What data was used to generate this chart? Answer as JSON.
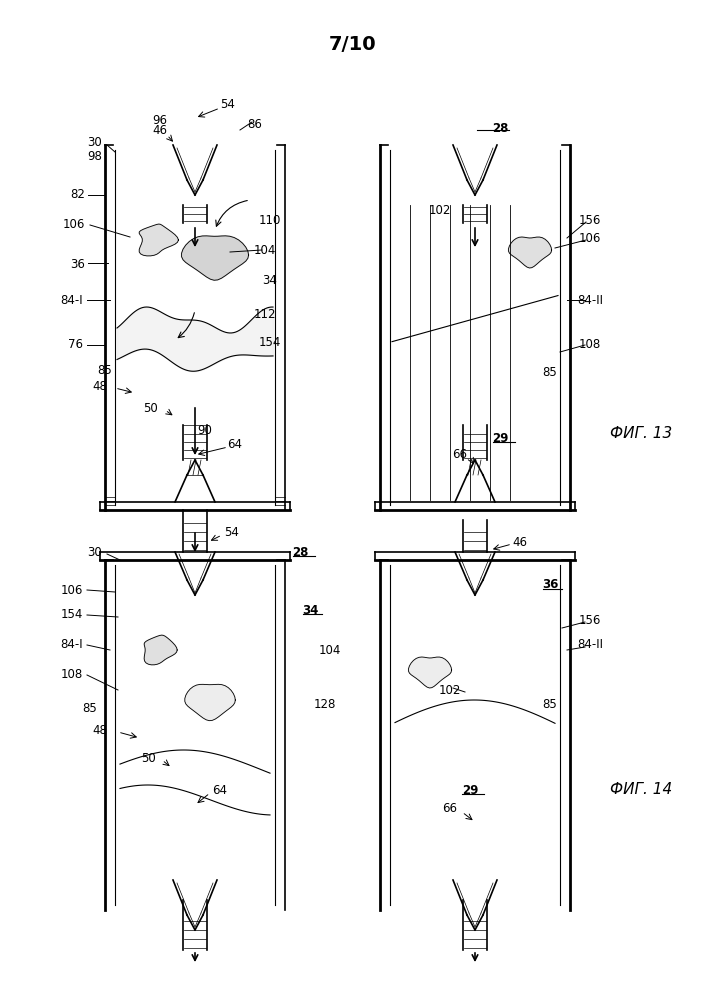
{
  "title": "7/10",
  "fig13_label": "ФИГ. 13",
  "fig14_label": "ФИГ. 14",
  "background_color": "#ffffff",
  "line_color": "#000000",
  "title_fontsize": 14,
  "label_fontsize": 8.5,
  "fig_width": 7.07,
  "fig_height": 10.0
}
